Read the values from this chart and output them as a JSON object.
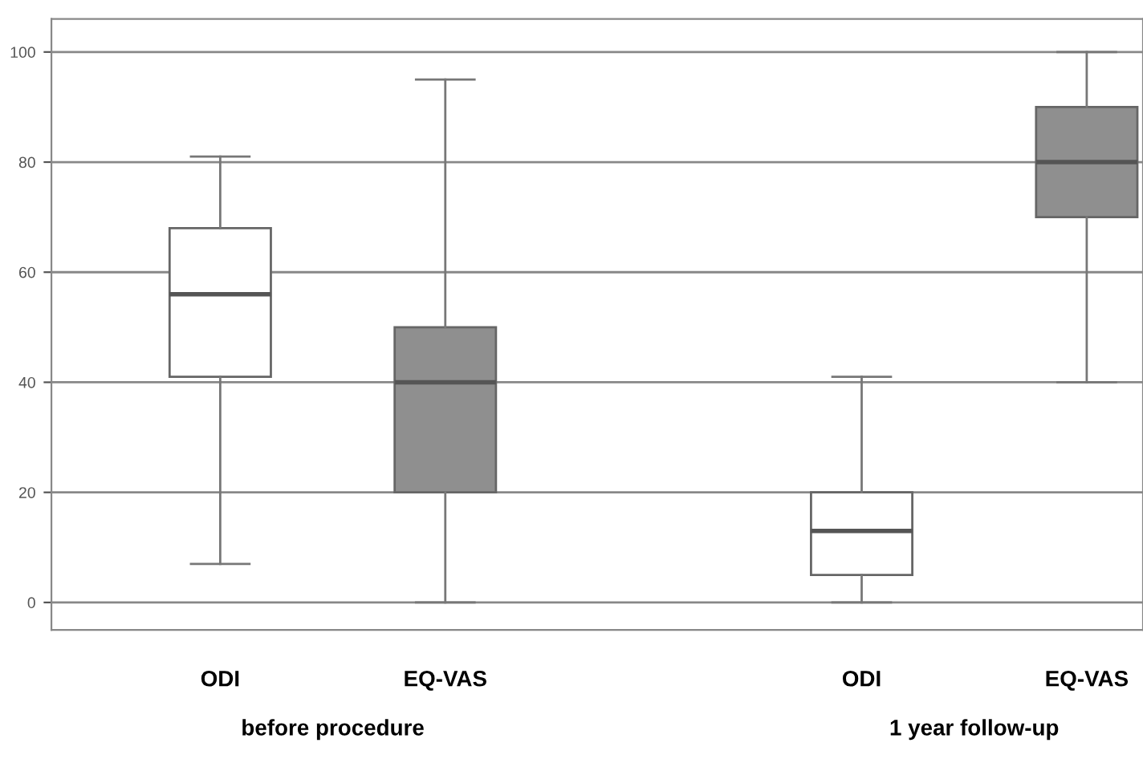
{
  "chart_data": {
    "type": "box",
    "categories": [
      "ODI",
      "EQ-VAS",
      "ODI",
      "EQ-VAS"
    ],
    "boxes": [
      {
        "low": 7,
        "q1": 41,
        "median": 56,
        "q3": 68,
        "high": 81
      },
      {
        "low": 0,
        "q1": 20,
        "median": 40,
        "q3": 50,
        "high": 95
      },
      {
        "low": 0,
        "q1": 5,
        "median": 13,
        "q3": 20,
        "high": 41
      },
      {
        "low": 40,
        "q1": 70,
        "median": 80,
        "q3": 90,
        "high": 100
      }
    ],
    "colors": [
      "#ffffff",
      "#8f8f8f",
      "#ffffff",
      "#8f8f8f"
    ],
    "ylim": [
      -5,
      106
    ],
    "yticks": [
      0,
      20,
      40,
      60,
      80,
      100
    ],
    "grid": "y",
    "annotations": [
      "before procedure",
      "1 year follow-up"
    ]
  }
}
